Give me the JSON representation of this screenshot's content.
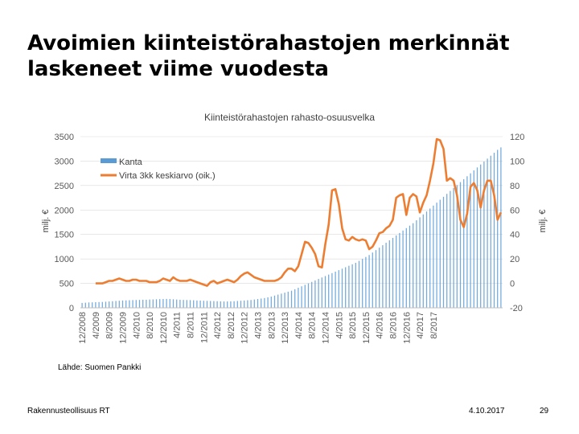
{
  "slide": {
    "title": "Avoimien kiinteistörahastojen merkinnät laskeneet viime vuodesta",
    "source": "Lähde: Suomen Pankki",
    "organization": "Rakennusteollisuus RT",
    "date": "4.10.2017",
    "page_number": "29"
  },
  "chart_data": {
    "type": "bar+line",
    "title": "Kiinteistörahastojen rahasto-osuusvelka",
    "ylabel": "milj. €",
    "y2label": "milj. €",
    "ylim": [
      0,
      3500
    ],
    "y2lim": [
      -20,
      120
    ],
    "yticks": [
      0,
      500,
      1000,
      1500,
      2000,
      2500,
      3000,
      3500
    ],
    "y2ticks": [
      -20,
      0,
      20,
      40,
      60,
      80,
      100,
      120
    ],
    "legend_position": "top-left",
    "colors": {
      "kanta": "#5b9bd5",
      "virta": "#ed7d31",
      "grid": "#d9d9d9",
      "axis_text": "#595959"
    },
    "x_tick_labels": [
      "12/2008",
      "4/2009",
      "8/2009",
      "12/2009",
      "4/2010",
      "8/2010",
      "12/2010",
      "4/2011",
      "8/2011",
      "12/2011",
      "4/2012",
      "8/2012",
      "12/2012",
      "4/2013",
      "8/2013",
      "12/2013",
      "4/2014",
      "8/2014",
      "12/2014",
      "4/2015",
      "8/2015",
      "12/2015",
      "4/2016",
      "8/2016",
      "12/2016",
      "4/2017",
      "8/2017"
    ],
    "series": [
      {
        "name": "Kanta",
        "type": "bar",
        "axis": "left",
        "values": [
          100,
          105,
          110,
          112,
          115,
          118,
          120,
          125,
          130,
          135,
          140,
          145,
          150,
          152,
          155,
          158,
          160,
          162,
          165,
          165,
          170,
          172,
          175,
          178,
          180,
          182,
          180,
          175,
          170,
          165,
          162,
          160,
          158,
          155,
          150,
          148,
          145,
          142,
          140,
          138,
          135,
          132,
          130,
          130,
          132,
          135,
          140,
          145,
          150,
          155,
          160,
          170,
          180,
          190,
          200,
          215,
          230,
          250,
          270,
          290,
          310,
          330,
          350,
          380,
          410,
          440,
          470,
          500,
          530,
          560,
          590,
          620,
          650,
          680,
          710,
          740,
          770,
          800,
          830,
          860,
          890,
          920,
          960,
          1000,
          1040,
          1080,
          1130,
          1180,
          1230,
          1280,
          1330,
          1380,
          1430,
          1480,
          1530,
          1580,
          1630,
          1680,
          1730,
          1790,
          1850,
          1910,
          1970,
          2030,
          2090,
          2150,
          2210,
          2270,
          2330,
          2390,
          2450,
          2510,
          2570,
          2630,
          2690,
          2750,
          2810,
          2870,
          2930,
          2990,
          3050,
          3110,
          3170,
          3230,
          3280
        ]
      },
      {
        "name": "Virta 3kk keskiarvo (oik.)",
        "type": "line",
        "axis": "right",
        "values": [
          null,
          null,
          null,
          null,
          0,
          0,
          0,
          1,
          2,
          2,
          3,
          4,
          3,
          2,
          2,
          3,
          3,
          2,
          2,
          2,
          1,
          1,
          1,
          2,
          4,
          3,
          2,
          5,
          3,
          2,
          2,
          2,
          3,
          2,
          1,
          0,
          -1,
          -2,
          1,
          2,
          0,
          1,
          2,
          3,
          2,
          1,
          3,
          6,
          8,
          9,
          7,
          5,
          4,
          3,
          2,
          2,
          2,
          2,
          3,
          5,
          9,
          12,
          12,
          10,
          14,
          24,
          34,
          33,
          29,
          24,
          14,
          13,
          32,
          48,
          76,
          77,
          65,
          45,
          36,
          35,
          38,
          36,
          35,
          36,
          35,
          28,
          30,
          35,
          41,
          42,
          45,
          47,
          52,
          70,
          72,
          73,
          56,
          70,
          73,
          71,
          58,
          66,
          72,
          84,
          98,
          118,
          117,
          110,
          84,
          86,
          84,
          72,
          52,
          46,
          57,
          79,
          82,
          76,
          62,
          76,
          84,
          84,
          72,
          52,
          58
        ]
      }
    ]
  }
}
